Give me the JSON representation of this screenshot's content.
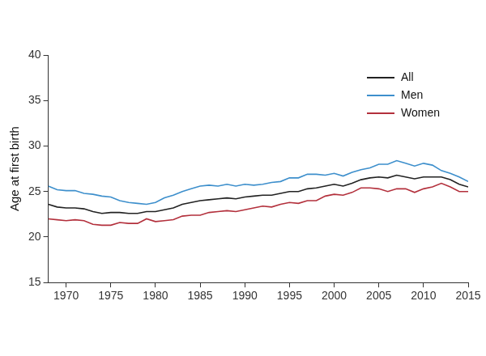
{
  "chart_data": {
    "type": "line",
    "y_label": "Age at first birth",
    "x": [
      1968,
      1969,
      1970,
      1971,
      1972,
      1973,
      1974,
      1975,
      1976,
      1977,
      1978,
      1979,
      1980,
      1981,
      1982,
      1983,
      1984,
      1985,
      1986,
      1987,
      1988,
      1989,
      1990,
      1991,
      1992,
      1993,
      1994,
      1995,
      1996,
      1997,
      1998,
      1999,
      2000,
      2001,
      2002,
      2003,
      2004,
      2005,
      2006,
      2007,
      2008,
      2009,
      2010,
      2011,
      2012,
      2013,
      2014,
      2015
    ],
    "series": [
      {
        "name": "All",
        "color": "#222222",
        "values": [
          23.6,
          23.3,
          23.2,
          23.2,
          23.1,
          22.8,
          22.6,
          22.7,
          22.7,
          22.6,
          22.6,
          22.8,
          22.8,
          23.0,
          23.2,
          23.6,
          23.8,
          24.0,
          24.1,
          24.2,
          24.3,
          24.2,
          24.4,
          24.5,
          24.6,
          24.6,
          24.8,
          25.0,
          25.0,
          25.3,
          25.4,
          25.6,
          25.8,
          25.6,
          25.9,
          26.3,
          26.5,
          26.6,
          26.5,
          26.8,
          26.6,
          26.4,
          26.6,
          26.6,
          26.6,
          26.3,
          25.8,
          25.5
        ]
      },
      {
        "name": "Men",
        "color": "#3d8fcc",
        "values": [
          25.6,
          25.2,
          25.1,
          25.1,
          24.8,
          24.7,
          24.5,
          24.4,
          24.0,
          23.8,
          23.7,
          23.6,
          23.8,
          24.3,
          24.6,
          25.0,
          25.3,
          25.6,
          25.7,
          25.6,
          25.8,
          25.6,
          25.8,
          25.7,
          25.8,
          26.0,
          26.1,
          26.5,
          26.5,
          26.9,
          26.9,
          26.8,
          27.0,
          26.7,
          27.1,
          27.4,
          27.6,
          28.0,
          28.0,
          28.4,
          28.1,
          27.8,
          28.1,
          27.9,
          27.3,
          27.0,
          26.6,
          26.1
        ]
      },
      {
        "name": "Women",
        "color": "#b3303c",
        "values": [
          22.0,
          21.9,
          21.8,
          21.9,
          21.8,
          21.4,
          21.3,
          21.3,
          21.6,
          21.5,
          21.5,
          22.0,
          21.7,
          21.8,
          21.9,
          22.3,
          22.4,
          22.4,
          22.7,
          22.8,
          22.9,
          22.8,
          23.0,
          23.2,
          23.4,
          23.3,
          23.6,
          23.8,
          23.7,
          24.0,
          24.0,
          24.5,
          24.7,
          24.6,
          24.9,
          25.4,
          25.4,
          25.3,
          25.0,
          25.3,
          25.3,
          24.9,
          25.3,
          25.5,
          25.9,
          25.5,
          25.0,
          25.0
        ]
      }
    ],
    "xlim": [
      1968,
      2015
    ],
    "xticks": [
      1970,
      1975,
      1980,
      1985,
      1990,
      1995,
      2000,
      2005,
      2010,
      2015
    ],
    "ylim": [
      15,
      40
    ],
    "yticks": [
      15,
      20,
      25,
      30,
      35,
      40
    ],
    "grid": false,
    "legend": "upper right"
  }
}
